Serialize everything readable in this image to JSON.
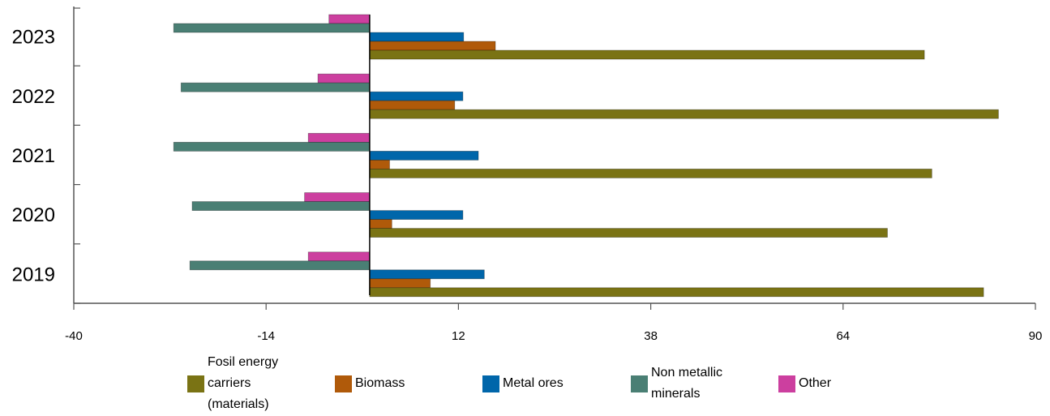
{
  "chart_data": {
    "type": "bar",
    "orientation": "horizontal",
    "categories": [
      "2023",
      "2022",
      "2021",
      "2020",
      "2019"
    ],
    "series": [
      {
        "name": "Fosil energy\ncarriers\n(materials)",
        "color": "#7a7314",
        "values": [
          75,
          85,
          76,
          70,
          83
        ]
      },
      {
        "name": "Biomass",
        "color": "#b05a0a",
        "values": [
          17,
          11.5,
          2.7,
          3,
          8.2
        ]
      },
      {
        "name": "Metal ores",
        "color": "#0066aa",
        "values": [
          12.7,
          12.6,
          14.7,
          12.6,
          15.5
        ]
      },
      {
        "name": "Non metallic\nminerals",
        "color": "#4a7f74",
        "values": [
          -26.5,
          -25.5,
          -26.5,
          -24,
          -24.3
        ]
      },
      {
        "name": "Other",
        "color": "#cc3f9f",
        "values": [
          -5.5,
          -7,
          -8.3,
          -8.8,
          -8.3
        ]
      }
    ],
    "xlim": [
      -40,
      90
    ],
    "xticks": [
      "-40",
      "-14",
      "12",
      "38",
      "64",
      "90"
    ],
    "grid": false,
    "legend_position": "bottom"
  }
}
